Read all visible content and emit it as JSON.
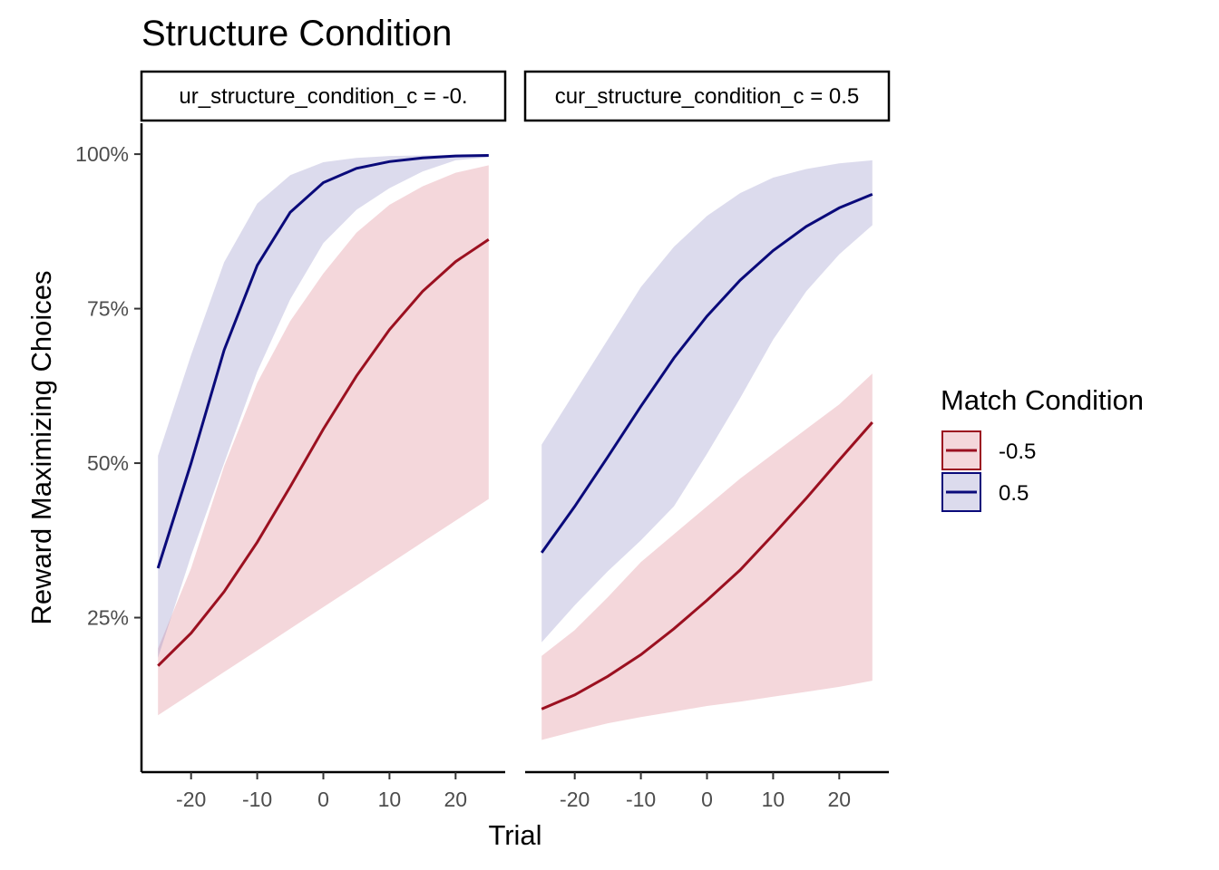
{
  "chart_data": {
    "type": "line",
    "title": "Structure Condition",
    "xlabel": "Trial",
    "ylabel": "Reward Maximizing Choices",
    "x_ticks": [
      -20,
      -10,
      0,
      10,
      20
    ],
    "x_tick_labels": [
      "-20",
      "-10",
      "0",
      "10",
      "20"
    ],
    "y_ticks": [
      0.25,
      0.5,
      0.75,
      1.0
    ],
    "y_tick_labels": [
      "25%",
      "50%",
      "75%",
      "100%"
    ],
    "xlim": [
      -27.5,
      27.5
    ],
    "ylim": [
      -0.0,
      1.05
    ],
    "legend": {
      "title": "Match Condition",
      "position": "right",
      "entries": [
        "-0.5",
        "0.5"
      ]
    },
    "colors": {
      "-0.5": "#9b1020",
      "0.5": "#0a0a7a",
      "-0.5_fill": "#d97b87",
      "0.5_fill": "#8a88c4"
    },
    "x": [
      -25,
      -20,
      -15,
      -10,
      -5,
      0,
      5,
      10,
      15,
      20,
      25
    ],
    "panels": [
      {
        "strip": "ur_structure_condition_c = -0.",
        "series": [
          {
            "name": "-0.5",
            "values": [
              0.172,
              0.225,
              0.292,
              0.372,
              0.462,
              0.555,
              0.641,
              0.716,
              0.778,
              0.826,
              0.862
            ],
            "lower": [
              0.092,
              0.127,
              0.162,
              0.197,
              0.232,
              0.267,
              0.302,
              0.337,
              0.372,
              0.407,
              0.442
            ],
            "upper": [
              0.2,
              0.33,
              0.495,
              0.63,
              0.73,
              0.807,
              0.873,
              0.918,
              0.948,
              0.97,
              0.982
            ]
          },
          {
            "name": "0.5",
            "values": [
              0.33,
              0.5,
              0.683,
              0.82,
              0.906,
              0.954,
              0.977,
              0.988,
              0.994,
              0.997,
              0.998
            ],
            "lower": [
              0.185,
              0.35,
              0.5,
              0.648,
              0.765,
              0.856,
              0.91,
              0.945,
              0.972,
              0.99,
              0.995
            ],
            "upper": [
              0.512,
              0.675,
              0.825,
              0.92,
              0.966,
              0.987,
              0.994,
              0.997,
              0.998,
              0.999,
              1.0
            ]
          }
        ]
      },
      {
        "strip": "cur_structure_condition_c = 0.5",
        "series": [
          {
            "name": "-0.5",
            "values": [
              0.102,
              0.125,
              0.155,
              0.19,
              0.232,
              0.278,
              0.327,
              0.384,
              0.443,
              0.505,
              0.566
            ],
            "lower": [
              0.052,
              0.066,
              0.079,
              0.089,
              0.098,
              0.107,
              0.114,
              0.122,
              0.13,
              0.138,
              0.148
            ],
            "upper": [
              0.188,
              0.23,
              0.283,
              0.34,
              0.385,
              0.43,
              0.475,
              0.515,
              0.555,
              0.595,
              0.645
            ]
          },
          {
            "name": "0.5",
            "values": [
              0.355,
              0.43,
              0.51,
              0.592,
              0.67,
              0.738,
              0.796,
              0.844,
              0.883,
              0.913,
              0.935
            ],
            "lower": [
              0.21,
              0.27,
              0.325,
              0.375,
              0.43,
              0.515,
              0.605,
              0.7,
              0.778,
              0.838,
              0.885
            ],
            "upper": [
              0.53,
              0.615,
              0.7,
              0.785,
              0.85,
              0.9,
              0.937,
              0.962,
              0.976,
              0.985,
              0.99
            ]
          }
        ]
      }
    ],
    "grid": false
  }
}
